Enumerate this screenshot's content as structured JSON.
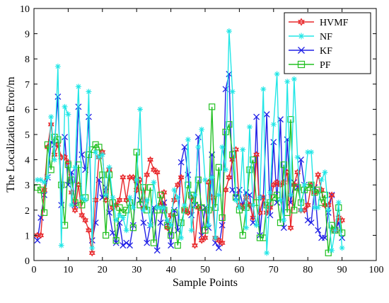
{
  "chart_data": {
    "type": "line",
    "title": "",
    "xlabel": "Sample Points",
    "ylabel": "The Localization Error/m",
    "xlim": [
      0,
      100
    ],
    "ylim": [
      0,
      10
    ],
    "xticks": [
      "0",
      "10",
      "20",
      "30",
      "40",
      "50",
      "60",
      "70",
      "80",
      "90",
      "100"
    ],
    "yticks": [
      "0",
      "1",
      "2",
      "3",
      "4",
      "5",
      "6",
      "7",
      "8",
      "9",
      "10"
    ],
    "grid": false,
    "legend_position": "top-right",
    "x_start": 1,
    "series": [
      {
        "name": "HVMF",
        "color": "#e8282b",
        "marker": "hexagram",
        "values": [
          1.0,
          1.0,
          2.8,
          4.5,
          5.4,
          4.2,
          4.6,
          4.1,
          4.1,
          3.9,
          2.7,
          2.0,
          3.0,
          1.8,
          1.6,
          1.2,
          0.3,
          2.4,
          4.1,
          4.3,
          2.4,
          3.6,
          2.1,
          2.2,
          2.4,
          3.3,
          2.4,
          3.3,
          3.3,
          2.8,
          3.2,
          2.1,
          3.4,
          4.0,
          3.6,
          3.5,
          2.2,
          2.7,
          1.3,
          1.8,
          2.4,
          3.0,
          3.3,
          2.0,
          1.9,
          2.5,
          0.6,
          2.1,
          0.8,
          0.9,
          3.1,
          2.5,
          0.9,
          0.8,
          0.7,
          2.8,
          3.3,
          4.0,
          4.4,
          2.2,
          2.1,
          2.5,
          2.2,
          1.7,
          4.2,
          1.9,
          2.5,
          1.9,
          2.1,
          3.0,
          3.1,
          3.0,
          3.1,
          3.5,
          1.3,
          3.0,
          3.5,
          2.0,
          2.0,
          2.2,
          3.0,
          2.7,
          3.4,
          2.8,
          2.2,
          2.2,
          2.6,
          1.2,
          1.7,
          1.6
        ]
      },
      {
        "name": "NF",
        "color": "#22e6e6",
        "marker": "asterisk",
        "values": [
          3.2,
          3.2,
          3.1,
          3.3,
          5.7,
          4.0,
          7.7,
          0.6,
          6.1,
          5.8,
          2.2,
          3.7,
          6.9,
          2.5,
          2.4,
          6.7,
          0.5,
          4.3,
          4.1,
          4.2,
          2.6,
          3.7,
          2.5,
          1.6,
          1.8,
          1.7,
          1.2,
          2.5,
          2.1,
          3.2,
          6.0,
          2.0,
          2.4,
          1.4,
          3.1,
          2.1,
          2.1,
          2.1,
          1.6,
          1.4,
          2.8,
          2.5,
          0.9,
          2.2,
          4.8,
          1.2,
          2.6,
          4.5,
          5.2,
          3.2,
          1.4,
          3.3,
          0.9,
          2.6,
          4.5,
          3.6,
          9.1,
          6.7,
          2.4,
          2.1,
          4.4,
          1.3,
          5.3,
          2.2,
          1.4,
          2.5,
          6.8,
          0.3,
          2.7,
          5.4,
          7.4,
          2.4,
          1.6,
          7.1,
          2.6,
          7.2,
          4.1,
          2.0,
          3.0,
          4.3,
          4.3,
          2.1,
          2.1,
          3.2,
          3.5,
          2.0,
          0.4,
          1.2,
          2.3,
          0.5
        ]
      },
      {
        "name": "KF",
        "color": "#2121e6",
        "marker": "x",
        "values": [
          0.8,
          1.7,
          2.6,
          3.3,
          4.7,
          4.6,
          6.5,
          2.2,
          4.9,
          3.0,
          3.5,
          2.2,
          6.1,
          4.2,
          3.6,
          5.7,
          0.8,
          1.5,
          3.2,
          2.5,
          2.9,
          1.9,
          1.1,
          0.7,
          1.5,
          0.6,
          0.7,
          0.6,
          1.4,
          3.2,
          2.4,
          1.5,
          0.7,
          1.4,
          2.1,
          0.4,
          1.5,
          2.3,
          1.5,
          0.6,
          2.0,
          1.2,
          3.9,
          4.5,
          3.4,
          1.8,
          2.2,
          4.9,
          1.0,
          2.1,
          1.3,
          4.2,
          0.7,
          0.5,
          1.4,
          6.8,
          7.4,
          2.8,
          2.5,
          2.8,
          2.2,
          2.7,
          2.6,
          1.5,
          5.7,
          1.0,
          2.5,
          5.8,
          1.8,
          4.7,
          2.3,
          5.6,
          1.3,
          4.8,
          2.3,
          3.1,
          2.9,
          4.0,
          3.0,
          1.6,
          1.5,
          2.9,
          1.2,
          0.9,
          0.9,
          1.9,
          2.6,
          1.2,
          1.5,
          0.9
        ]
      },
      {
        "name": "PF",
        "color": "#22c022",
        "marker": "square",
        "values": [
          2.9,
          2.8,
          1.9,
          4.6,
          3.6,
          4.9,
          4.8,
          3.0,
          1.4,
          3.8,
          3.2,
          2.3,
          3.8,
          2.2,
          2.5,
          4.2,
          4.4,
          4.6,
          4.5,
          3.4,
          1.0,
          3.4,
          2.3,
          0.8,
          2.1,
          1.9,
          2.0,
          2.3,
          1.3,
          4.3,
          2.2,
          2.9,
          2.0,
          2.9,
          0.7,
          2.0,
          2.6,
          2.0,
          1.4,
          1.0,
          1.9,
          0.6,
          1.5,
          2.0,
          3.0,
          2.6,
          2.2,
          3.2,
          2.1,
          1.2,
          2.0,
          6.1,
          2.1,
          3.7,
          1.7,
          5.1,
          5.4,
          4.2,
          2.5,
          2.0,
          1.0,
          2.1,
          3.6,
          4.0,
          2.3,
          0.9,
          0.9,
          2.2,
          2.3,
          2.5,
          2.6,
          1.5,
          3.8,
          1.9,
          5.6,
          2.0,
          2.9,
          2.3,
          2.8,
          2.9,
          3.0,
          2.7,
          2.8,
          2.3,
          2.6,
          0.3,
          1.4,
          1.2,
          2.1,
          1.1
        ]
      }
    ]
  }
}
